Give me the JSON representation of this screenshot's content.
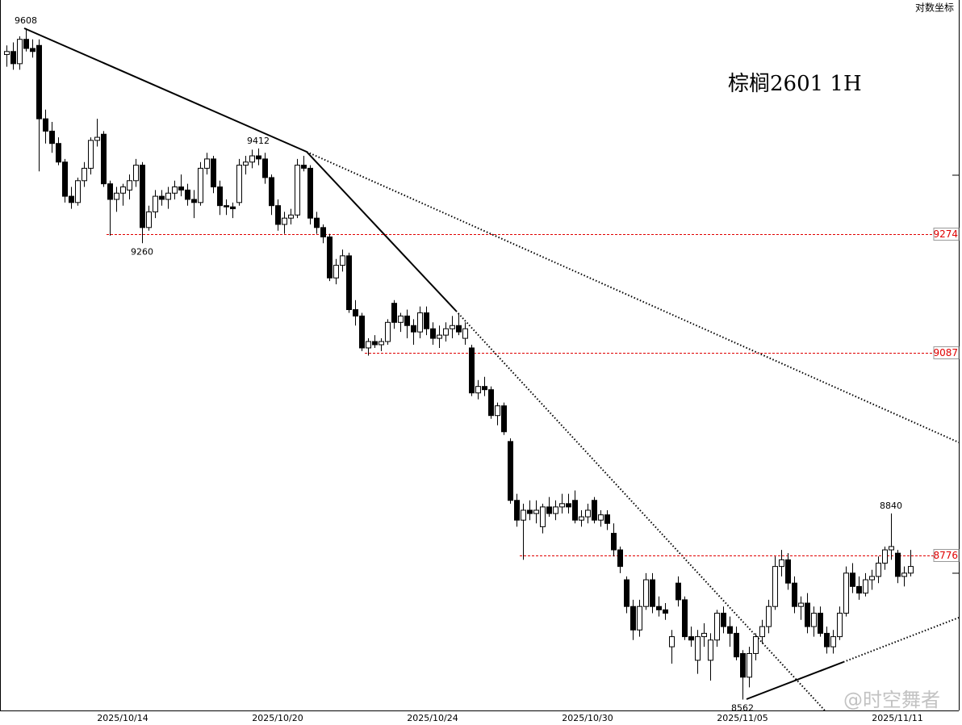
{
  "chart_data": {
    "type": "candlestick",
    "title": "棕榈2601  1H",
    "scale_label": "对数坐标",
    "watermark": "@时空舞者",
    "log_scale": true,
    "ylim": [
      8546,
      9655
    ],
    "up_color": "#ffffff",
    "down_color": "#000000",
    "level_color": "#e00000",
    "levels": [
      9274,
      9087,
      8776
    ],
    "annotations": [
      9608,
      9412,
      9260,
      8840,
      8562
    ],
    "categories": [
      null,
      null,
      null,
      null,
      null,
      null,
      null,
      null,
      null,
      null,
      null,
      null,
      null,
      null,
      null,
      null,
      null,
      null,
      "2025/10/14",
      null,
      null,
      null,
      null,
      null,
      null,
      null,
      null,
      null,
      null,
      null,
      null,
      null,
      null,
      null,
      null,
      null,
      null,
      null,
      null,
      null,
      null,
      null,
      "2025/10/20",
      null,
      null,
      null,
      null,
      null,
      null,
      null,
      null,
      null,
      null,
      null,
      null,
      null,
      null,
      null,
      null,
      null,
      null,
      null,
      null,
      null,
      null,
      null,
      "2025/10/24",
      null,
      null,
      null,
      null,
      null,
      null,
      null,
      null,
      null,
      null,
      null,
      null,
      null,
      null,
      null,
      null,
      null,
      null,
      null,
      null,
      null,
      null,
      null,
      "2025/10/30",
      null,
      null,
      null,
      null,
      null,
      null,
      null,
      null,
      null,
      null,
      null,
      null,
      null,
      null,
      null,
      null,
      null,
      null,
      null,
      null,
      null,
      null,
      null,
      "2025/11/05",
      null,
      null,
      null,
      null,
      null,
      null,
      null,
      null,
      null,
      null,
      null,
      null,
      null,
      null,
      null,
      null,
      null,
      null,
      null,
      null,
      null,
      null,
      null,
      "2025/11/11",
      null,
      null
    ],
    "values": [
      [
        9565,
        9580,
        9545,
        9570
      ],
      [
        9570,
        9585,
        9540,
        9550
      ],
      [
        9550,
        9595,
        9540,
        9590
      ],
      [
        9590,
        9608,
        9570,
        9575
      ],
      [
        9575,
        9590,
        9560,
        9570
      ],
      [
        9580,
        9590,
        9375,
        9460
      ],
      [
        9460,
        9475,
        9420,
        9440
      ],
      [
        9440,
        9455,
        9405,
        9420
      ],
      [
        9420,
        9430,
        9385,
        9390
      ],
      [
        9390,
        9395,
        9325,
        9335
      ],
      [
        9335,
        9350,
        9315,
        9325
      ],
      [
        9325,
        9365,
        9320,
        9360
      ],
      [
        9360,
        9390,
        9350,
        9380
      ],
      [
        9380,
        9430,
        9370,
        9425
      ],
      [
        9425,
        9460,
        9415,
        9430
      ],
      [
        9435,
        9440,
        9350,
        9355
      ],
      [
        9355,
        9360,
        9272,
        9330
      ],
      [
        9330,
        9350,
        9310,
        9340
      ],
      [
        9340,
        9355,
        9320,
        9350
      ],
      [
        9345,
        9370,
        9330,
        9360
      ],
      [
        9360,
        9395,
        9350,
        9385
      ],
      [
        9385,
        9390,
        9260,
        9285
      ],
      [
        9285,
        9320,
        9280,
        9310
      ],
      [
        9310,
        9345,
        9300,
        9335
      ],
      [
        9335,
        9345,
        9320,
        9330
      ],
      [
        9330,
        9350,
        9315,
        9340
      ],
      [
        9340,
        9360,
        9330,
        9350
      ],
      [
        9350,
        9370,
        9335,
        9345
      ],
      [
        9345,
        9355,
        9320,
        9330
      ],
      [
        9330,
        9345,
        9300,
        9325
      ],
      [
        9325,
        9390,
        9320,
        9380
      ],
      [
        9380,
        9405,
        9370,
        9395
      ],
      [
        9395,
        9400,
        9340,
        9350
      ],
      [
        9350,
        9360,
        9305,
        9320
      ],
      [
        9320,
        9330,
        9305,
        9318
      ],
      [
        9318,
        9325,
        9300,
        9315
      ],
      [
        9325,
        9395,
        9320,
        9385
      ],
      [
        9385,
        9400,
        9370,
        9390
      ],
      [
        9390,
        9410,
        9380,
        9400
      ],
      [
        9400,
        9412,
        9385,
        9395
      ],
      [
        9395,
        9405,
        9355,
        9365
      ],
      [
        9365,
        9370,
        9305,
        9320
      ],
      [
        9320,
        9330,
        9280,
        9290
      ],
      [
        9290,
        9310,
        9275,
        9300
      ],
      [
        9300,
        9315,
        9290,
        9305
      ],
      [
        9305,
        9395,
        9300,
        9385
      ],
      [
        9385,
        9400,
        9375,
        9380
      ],
      [
        9380,
        9385,
        9290,
        9300
      ],
      [
        9300,
        9310,
        9275,
        9285
      ],
      [
        9285,
        9290,
        9260,
        9270
      ],
      [
        9270,
        9275,
        9200,
        9205
      ],
      [
        9205,
        9235,
        9195,
        9225
      ],
      [
        9225,
        9250,
        9215,
        9240
      ],
      [
        9240,
        9245,
        9150,
        9155
      ],
      [
        9155,
        9170,
        9130,
        9145
      ],
      [
        9145,
        9150,
        9090,
        9095
      ],
      [
        9095,
        9110,
        9083,
        9105
      ],
      [
        9105,
        9115,
        9095,
        9100
      ],
      [
        9100,
        9110,
        9090,
        9105
      ],
      [
        9105,
        9140,
        9100,
        9135
      ],
      [
        9165,
        9170,
        9125,
        9135
      ],
      [
        9135,
        9150,
        9120,
        9145
      ],
      [
        9145,
        9155,
        9110,
        9130
      ],
      [
        9130,
        9140,
        9100,
        9120
      ],
      [
        9120,
        9160,
        9110,
        9150
      ],
      [
        9150,
        9160,
        9115,
        9125
      ],
      [
        9125,
        9135,
        9100,
        9110
      ],
      [
        9110,
        9130,
        9095,
        9115
      ],
      [
        9115,
        9135,
        9105,
        9125
      ],
      [
        9125,
        9145,
        9110,
        9130
      ],
      [
        9130,
        9150,
        9115,
        9120
      ],
      [
        9110,
        9135,
        9100,
        9125
      ],
      [
        9095,
        9100,
        9020,
        9025
      ],
      [
        9025,
        9045,
        9015,
        9035
      ],
      [
        9035,
        9050,
        9020,
        9030
      ],
      [
        9030,
        9035,
        8985,
        8990
      ],
      [
        8990,
        9010,
        8975,
        9005
      ],
      [
        9005,
        9010,
        8960,
        8965
      ],
      [
        8950,
        8955,
        8855,
        8860
      ],
      [
        8860,
        8870,
        8820,
        8830
      ],
      [
        8830,
        8855,
        8770,
        8845
      ],
      [
        8845,
        8860,
        8830,
        8840
      ],
      [
        8840,
        8860,
        8825,
        8845
      ],
      [
        8820,
        8855,
        8810,
        8850
      ],
      [
        8850,
        8865,
        8835,
        8840
      ],
      [
        8840,
        8860,
        8830,
        8850
      ],
      [
        8850,
        8870,
        8840,
        8855
      ],
      [
        8855,
        8870,
        8840,
        8850
      ],
      [
        8860,
        8875,
        8825,
        8830
      ],
      [
        8830,
        8845,
        8820,
        8835
      ],
      [
        8835,
        8855,
        8825,
        8845
      ],
      [
        8860,
        8865,
        8825,
        8830
      ],
      [
        8830,
        8845,
        8820,
        8838
      ],
      [
        8838,
        8845,
        8815,
        8825
      ],
      [
        8810,
        8825,
        8775,
        8785
      ],
      [
        8785,
        8790,
        8750,
        8760
      ],
      [
        8740,
        8745,
        8690,
        8700
      ],
      [
        8700,
        8710,
        8650,
        8665
      ],
      [
        8665,
        8710,
        8655,
        8700
      ],
      [
        8700,
        8750,
        8695,
        8740
      ],
      [
        8740,
        8750,
        8690,
        8700
      ],
      [
        8700,
        8715,
        8685,
        8695
      ],
      [
        8695,
        8705,
        8680,
        8690
      ],
      [
        8640,
        8665,
        8615,
        8655
      ],
      [
        8735,
        8745,
        8700,
        8710
      ],
      [
        8710,
        8715,
        8650,
        8655
      ],
      [
        8655,
        8670,
        8640,
        8650
      ],
      [
        8620,
        8665,
        8600,
        8655
      ],
      [
        8655,
        8675,
        8640,
        8660
      ],
      [
        8620,
        8660,
        8590,
        8650
      ],
      [
        8650,
        8695,
        8640,
        8690
      ],
      [
        8690,
        8700,
        8660,
        8670
      ],
      [
        8670,
        8685,
        8640,
        8660
      ],
      [
        8660,
        8670,
        8620,
        8625
      ],
      [
        8630,
        8635,
        8562,
        8595
      ],
      [
        8595,
        8640,
        8580,
        8630
      ],
      [
        8630,
        8660,
        8620,
        8655
      ],
      [
        8655,
        8680,
        8645,
        8670
      ],
      [
        8670,
        8710,
        8660,
        8700
      ],
      [
        8700,
        8775,
        8695,
        8760
      ],
      [
        8760,
        8785,
        8745,
        8770
      ],
      [
        8770,
        8780,
        8725,
        8735
      ],
      [
        8735,
        8745,
        8690,
        8700
      ],
      [
        8700,
        8715,
        8680,
        8705
      ],
      [
        8705,
        8720,
        8660,
        8670
      ],
      [
        8670,
        8700,
        8655,
        8690
      ],
      [
        8690,
        8700,
        8655,
        8660
      ],
      [
        8660,
        8670,
        8630,
        8640
      ],
      [
        8640,
        8665,
        8630,
        8655
      ],
      [
        8655,
        8700,
        8650,
        8690
      ],
      [
        8690,
        8760,
        8685,
        8750
      ],
      [
        8750,
        8765,
        8720,
        8730
      ],
      [
        8730,
        8745,
        8710,
        8720
      ],
      [
        8720,
        8750,
        8715,
        8740
      ],
      [
        8740,
        8755,
        8725,
        8745
      ],
      [
        8745,
        8775,
        8735,
        8765
      ],
      [
        8765,
        8790,
        8755,
        8785
      ],
      [
        8785,
        8840,
        8770,
        8790
      ],
      [
        8780,
        8785,
        8735,
        8745
      ],
      [
        8745,
        8760,
        8730,
        8750
      ],
      [
        8750,
        8785,
        8745,
        8760
      ]
    ]
  }
}
